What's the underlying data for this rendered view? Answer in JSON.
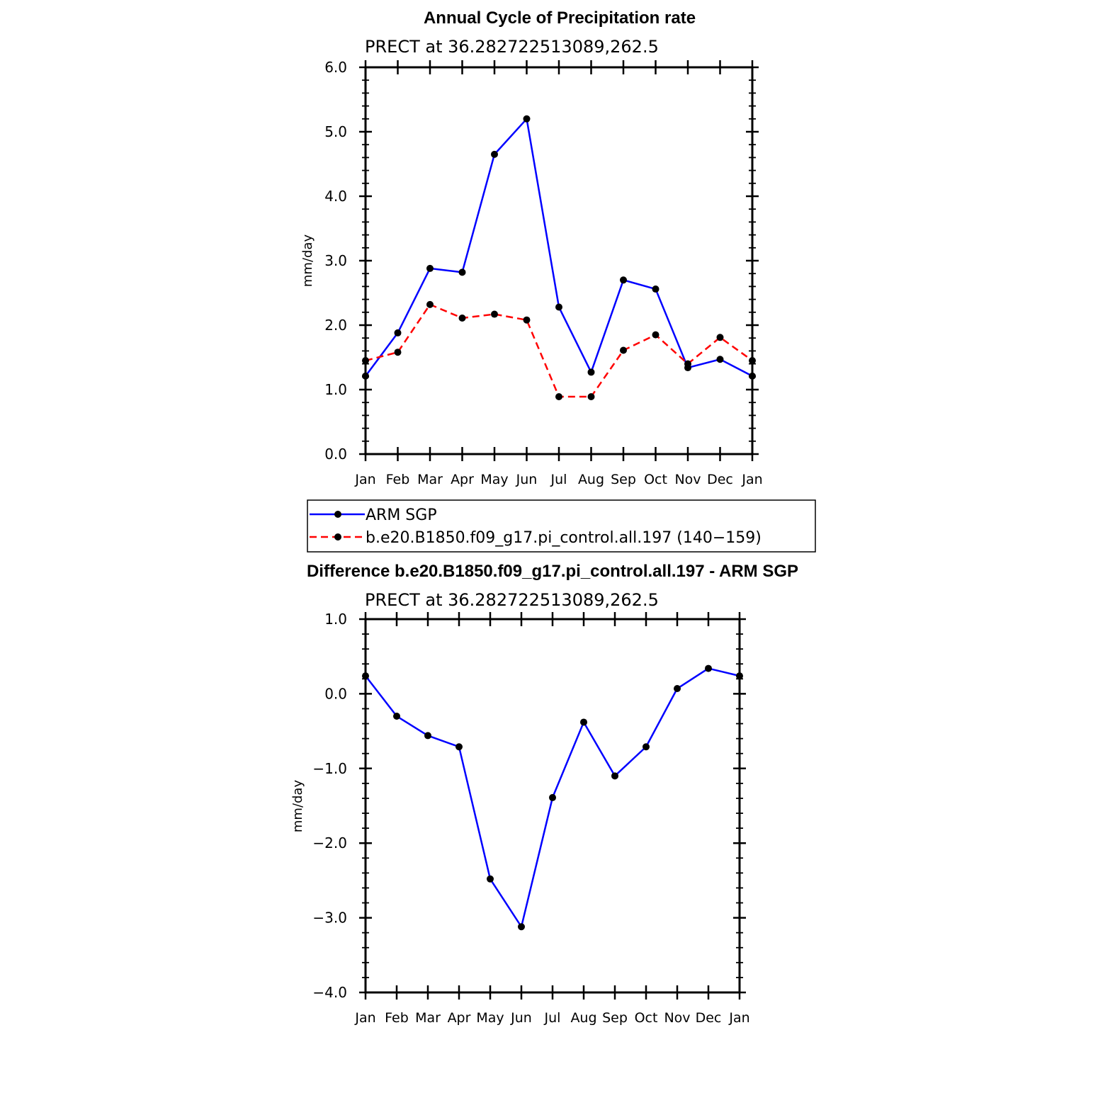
{
  "colors": {
    "series_obs": "#0000ff",
    "series_model": "#ff0000",
    "marker": "#000000"
  },
  "chart_data": [
    {
      "type": "line",
      "title": "Annual Cycle of Precipitation rate",
      "subtitle": "PRECT at 36.282722513089,262.5",
      "xlabel": "",
      "ylabel": "mm/day",
      "ylim": [
        0.0,
        6.0
      ],
      "yticks": [
        "0.0",
        "1.0",
        "2.0",
        "3.0",
        "4.0",
        "5.0",
        "6.0"
      ],
      "categories": [
        "Jan",
        "Feb",
        "Mar",
        "Apr",
        "May",
        "Jun",
        "Jul",
        "Aug",
        "Sep",
        "Oct",
        "Nov",
        "Dec",
        "Jan"
      ],
      "grid": false,
      "legend_position": "bottom",
      "series": [
        {
          "name": "ARM SGP",
          "style": "solid",
          "color": "#0000ff",
          "values": [
            1.21,
            1.88,
            2.88,
            2.82,
            4.65,
            5.2,
            2.28,
            1.27,
            2.7,
            2.56,
            1.34,
            1.47,
            1.21
          ]
        },
        {
          "name": "b.e20.B1850.f09_g17.pi_control.all.197 (140−159)",
          "style": "dashed",
          "color": "#ff0000",
          "values": [
            1.45,
            1.58,
            2.32,
            2.11,
            2.17,
            2.08,
            0.89,
            0.89,
            1.61,
            1.85,
            1.4,
            1.81,
            1.45
          ]
        }
      ]
    },
    {
      "type": "line",
      "title": "Difference b.e20.B1850.f09_g17.pi_control.all.197 - ARM SGP",
      "subtitle": "PRECT at 36.282722513089,262.5",
      "xlabel": "",
      "ylabel": "mm/day",
      "ylim": [
        -4.0,
        1.0
      ],
      "yticks": [
        "−4.0",
        "−3.0",
        "−2.0",
        "−1.0",
        "0.0",
        "1.0"
      ],
      "categories": [
        "Jan",
        "Feb",
        "Mar",
        "Apr",
        "May",
        "Jun",
        "Jul",
        "Aug",
        "Sep",
        "Oct",
        "Nov",
        "Dec",
        "Jan"
      ],
      "grid": false,
      "series": [
        {
          "style": "solid",
          "color": "#0000ff",
          "values": [
            0.24,
            -0.3,
            -0.56,
            -0.71,
            -2.48,
            -3.12,
            -1.39,
            -0.38,
            -1.1,
            -0.71,
            0.07,
            0.34,
            0.24
          ]
        }
      ]
    }
  ]
}
